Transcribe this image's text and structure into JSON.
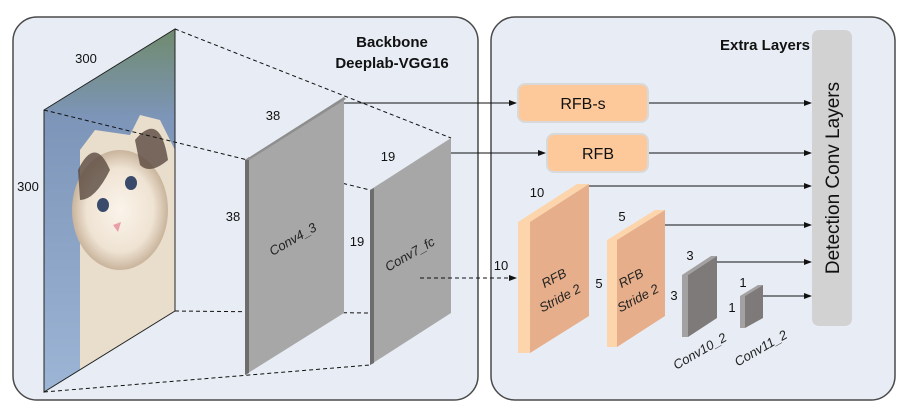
{
  "backbone": {
    "title_line1": "Backbone",
    "title_line2": "Deeplab-VGG16",
    "input": {
      "width_label": "300",
      "height_label": "300"
    },
    "conv4_3": {
      "name": "Conv4_3",
      "width_label": "38",
      "height_label": "38"
    },
    "conv7_fc": {
      "name": "Conv7_fc",
      "width_label": "19",
      "height_label": "19"
    }
  },
  "extra": {
    "title": "Extra Layers",
    "rfb_s": "RFB-s",
    "rfb": "RFB",
    "rfb_stride_1": {
      "line1": "RFB",
      "line2": "Stride 2",
      "width_label": "10",
      "height_label": "10"
    },
    "rfb_stride_2": {
      "line1": "RFB",
      "line2": "Stride 2",
      "width_label": "5",
      "height_label": "5"
    },
    "conv10_2": {
      "name": "Conv10_2",
      "width_label": "3",
      "height_label": "3"
    },
    "conv11_2": {
      "name": "Conv11_2",
      "width_label": "1",
      "height_label": "1"
    },
    "detection": "Detection Conv Layers"
  },
  "colors": {
    "panel": "#e8edf5",
    "rfb": "#fdc99b",
    "rfb_block": "#e6ae8a",
    "feature_map": "#a8a7a7",
    "conv_small": "#7d7a79",
    "detection": "#d3d2d3"
  }
}
